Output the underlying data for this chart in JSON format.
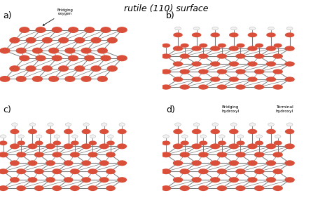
{
  "title": "rutile (110) surface",
  "title_fontsize": 9,
  "bg_color": "#ffffff",
  "panel_labels": [
    "a)",
    "b)",
    "c)",
    "d)"
  ],
  "red_color": "#d94f3a",
  "gray_color": "#7a7a7a",
  "white_color": "#f2f2f2",
  "light_gray": "#bbbbbb",
  "fig_width": 4.74,
  "fig_height": 2.92,
  "dpi": 100
}
